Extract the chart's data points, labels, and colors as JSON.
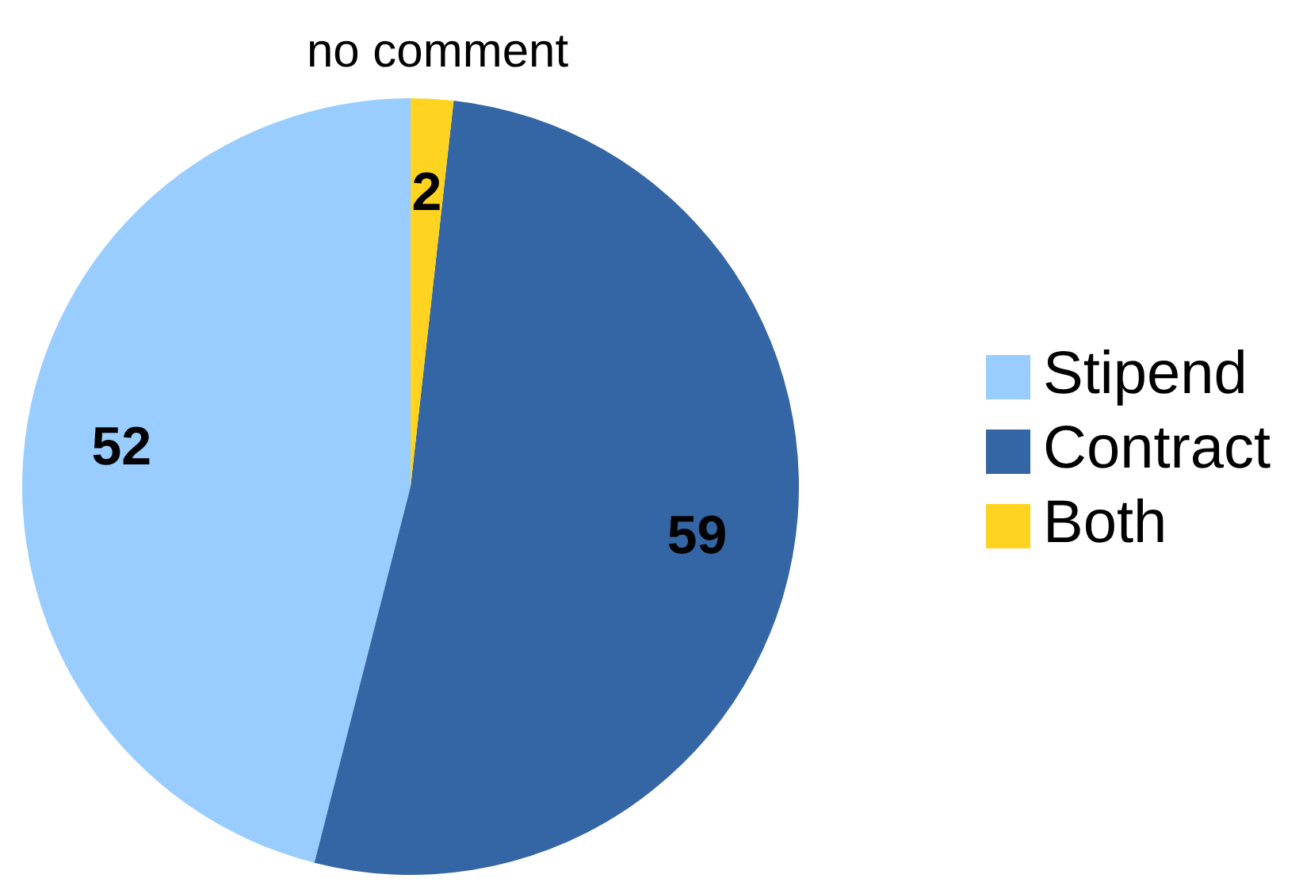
{
  "chart_data": {
    "type": "pie",
    "title": "no comment",
    "categories": [
      "Stipend",
      "Contract",
      "Both"
    ],
    "values": [
      52,
      59,
      2
    ],
    "colors": [
      "#99ccff",
      "#3465a4",
      "#ffd320"
    ],
    "data_labels": true,
    "legend": "right"
  }
}
